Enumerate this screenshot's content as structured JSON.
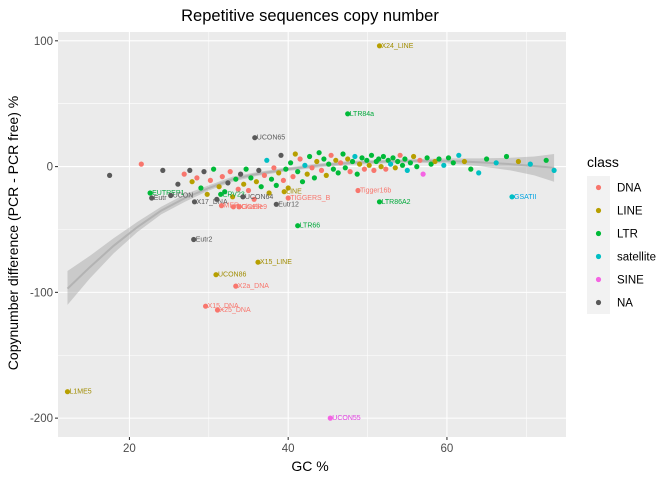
{
  "chart_data": {
    "type": "scatter",
    "title": "Repetitive sequences copy number",
    "xlabel": "GC %",
    "ylabel": "Copynumber difference (PCR - PCR free) %",
    "xlim": [
      11,
      75
    ],
    "ylim": [
      -215,
      107
    ],
    "x_ticks": [
      "20",
      "40",
      "60"
    ],
    "x_tick_values": [
      20,
      40,
      60
    ],
    "y_ticks": [
      "100",
      "0",
      "-100",
      "-200"
    ],
    "y_tick_values": [
      100,
      0,
      -100,
      -200
    ],
    "grid": true,
    "legend": {
      "title": "class",
      "position": "right",
      "entries": [
        {
          "name": "DNA",
          "color": "#F8766D"
        },
        {
          "name": "LINE",
          "color": "#B79F00"
        },
        {
          "name": "LTR",
          "color": "#00BA38"
        },
        {
          "name": "satellite",
          "color": "#00BFC4"
        },
        {
          "name": "SINE",
          "color": "#F564E3"
        },
        {
          "name": "NA",
          "color": "#595959"
        }
      ]
    },
    "colors": {
      "DNA": "#F8766D",
      "LINE": "#B79F00",
      "LTR": "#00BA38",
      "satellite": "#00BFC4",
      "SINE": "#F564E3",
      "NA": "#595959"
    },
    "label_colors": {
      "DNA": "#F8766D",
      "LINE": "#A08C00",
      "LTR": "#00A83A",
      "satellite": "#00A3E0",
      "SINE": "#E040E0",
      "NA": "#595959"
    },
    "labeled_points": [
      {
        "label": "X24_LINE",
        "x": 51.5,
        "y": 96,
        "class": "LINE"
      },
      {
        "label": "LTR84a",
        "x": 47.5,
        "y": 42,
        "class": "LTR"
      },
      {
        "label": "UCON65",
        "x": 35.8,
        "y": 23,
        "class": "NA"
      },
      {
        "label": "EUTREP1",
        "x": 22.6,
        "y": -21,
        "class": "LTR"
      },
      {
        "label": "UCON",
        "x": 25.2,
        "y": -23,
        "class": "NA"
      },
      {
        "label": "Eutr",
        "x": 22.8,
        "y": -25,
        "class": "NA"
      },
      {
        "label": "ERV23",
        "x": 31.5,
        "y": -22,
        "class": "LTR"
      },
      {
        "label": "X17_DNA",
        "x": 28.2,
        "y": -28,
        "class": "NA"
      },
      {
        "label": "UCON64",
        "x": 34.3,
        "y": -24,
        "class": "NA"
      },
      {
        "label": "MER",
        "x": 31.6,
        "y": -31,
        "class": "DNA"
      },
      {
        "label": "TIGGER",
        "x": 33.1,
        "y": -32,
        "class": "DNA"
      },
      {
        "label": "Charlie9",
        "x": 33.8,
        "y": -32,
        "class": "DNA"
      },
      {
        "label": "LINE",
        "x": 39.5,
        "y": -20,
        "class": "LINE"
      },
      {
        "label": "TIGGERS_B",
        "x": 40.0,
        "y": -25,
        "class": "DNA"
      },
      {
        "label": "Eutr12",
        "x": 38.5,
        "y": -30,
        "class": "NA"
      },
      {
        "label": "Tigger16b",
        "x": 48.8,
        "y": -19,
        "class": "DNA"
      },
      {
        "label": "LTR86A2",
        "x": 51.5,
        "y": -28,
        "class": "LTR"
      },
      {
        "label": "LTR66",
        "x": 41.2,
        "y": -47,
        "class": "LTR"
      },
      {
        "label": "GSATII",
        "x": 68.2,
        "y": -24,
        "class": "satellite"
      },
      {
        "label": "Eutr2",
        "x": 28.1,
        "y": -58,
        "class": "NA"
      },
      {
        "label": "X15_LINE",
        "x": 36.2,
        "y": -76,
        "class": "LINE"
      },
      {
        "label": "UCON86",
        "x": 30.9,
        "y": -86,
        "class": "LINE"
      },
      {
        "label": "X2a_DNA",
        "x": 33.4,
        "y": -95,
        "class": "DNA"
      },
      {
        "label": "X15_DNA",
        "x": 29.6,
        "y": -111,
        "class": "DNA"
      },
      {
        "label": "X25_DNA",
        "x": 31.1,
        "y": -114,
        "class": "DNA"
      },
      {
        "label": "L1ME5",
        "x": 12.2,
        "y": -179,
        "class": "LINE"
      },
      {
        "label": "UCON55",
        "x": 45.3,
        "y": -200,
        "class": "SINE"
      }
    ],
    "unlabeled_points": [
      {
        "x": 17.5,
        "y": -7,
        "class": "NA"
      },
      {
        "x": 21.5,
        "y": 2,
        "class": "DNA"
      },
      {
        "x": 24.2,
        "y": -3,
        "class": "NA"
      },
      {
        "x": 26.1,
        "y": -14,
        "class": "NA"
      },
      {
        "x": 26.9,
        "y": -6,
        "class": "DNA"
      },
      {
        "x": 27.6,
        "y": -3,
        "class": "NA"
      },
      {
        "x": 27.9,
        "y": -12,
        "class": "LINE"
      },
      {
        "x": 28.5,
        "y": -9,
        "class": "DNA"
      },
      {
        "x": 29.0,
        "y": -17,
        "class": "LTR"
      },
      {
        "x": 29.4,
        "y": -4,
        "class": "NA"
      },
      {
        "x": 29.8,
        "y": -22,
        "class": "LINE"
      },
      {
        "x": 30.2,
        "y": -11,
        "class": "DNA"
      },
      {
        "x": 30.6,
        "y": -2,
        "class": "LTR"
      },
      {
        "x": 31.0,
        "y": -26,
        "class": "NA"
      },
      {
        "x": 31.3,
        "y": -16,
        "class": "LINE"
      },
      {
        "x": 31.7,
        "y": -8,
        "class": "DNA"
      },
      {
        "x": 32.0,
        "y": -20,
        "class": "LTR"
      },
      {
        "x": 32.4,
        "y": -13,
        "class": "NA"
      },
      {
        "x": 32.7,
        "y": -4,
        "class": "DNA"
      },
      {
        "x": 33.0,
        "y": -24,
        "class": "LINE"
      },
      {
        "x": 33.4,
        "y": -10,
        "class": "LTR"
      },
      {
        "x": 33.7,
        "y": -18,
        "class": "DNA"
      },
      {
        "x": 34.0,
        "y": -6,
        "class": "NA"
      },
      {
        "x": 34.4,
        "y": -14,
        "class": "LINE"
      },
      {
        "x": 34.7,
        "y": -2,
        "class": "LTR"
      },
      {
        "x": 35.0,
        "y": -19,
        "class": "DNA"
      },
      {
        "x": 35.3,
        "y": -9,
        "class": "LTR"
      },
      {
        "x": 35.7,
        "y": -26,
        "class": "DNA"
      },
      {
        "x": 36.0,
        "y": -12,
        "class": "LINE"
      },
      {
        "x": 36.3,
        "y": -3,
        "class": "NA"
      },
      {
        "x": 36.6,
        "y": -16,
        "class": "LTR"
      },
      {
        "x": 37.0,
        "y": -7,
        "class": "DNA"
      },
      {
        "x": 37.3,
        "y": 5,
        "class": "satellite"
      },
      {
        "x": 37.6,
        "y": -21,
        "class": "LINE"
      },
      {
        "x": 37.9,
        "y": -10,
        "class": "LTR"
      },
      {
        "x": 38.2,
        "y": -1,
        "class": "DNA"
      },
      {
        "x": 38.5,
        "y": -15,
        "class": "LTR"
      },
      {
        "x": 38.8,
        "y": -5,
        "class": "LINE"
      },
      {
        "x": 39.1,
        "y": 9,
        "class": "NA"
      },
      {
        "x": 39.4,
        "y": -11,
        "class": "DNA"
      },
      {
        "x": 39.7,
        "y": -2,
        "class": "LTR"
      },
      {
        "x": 40.0,
        "y": -17,
        "class": "LINE"
      },
      {
        "x": 40.3,
        "y": 3,
        "class": "LTR"
      },
      {
        "x": 40.6,
        "y": -8,
        "class": "DNA"
      },
      {
        "x": 40.9,
        "y": 10,
        "class": "LINE"
      },
      {
        "x": 41.2,
        "y": -4,
        "class": "LTR"
      },
      {
        "x": 41.5,
        "y": 6,
        "class": "DNA"
      },
      {
        "x": 41.8,
        "y": -12,
        "class": "LTR"
      },
      {
        "x": 42.1,
        "y": 1,
        "class": "satellite"
      },
      {
        "x": 42.4,
        "y": -6,
        "class": "LINE"
      },
      {
        "x": 42.7,
        "y": 8,
        "class": "LTR"
      },
      {
        "x": 43.0,
        "y": -1,
        "class": "DNA"
      },
      {
        "x": 43.3,
        "y": -9,
        "class": "LTR"
      },
      {
        "x": 43.6,
        "y": 4,
        "class": "LINE"
      },
      {
        "x": 43.9,
        "y": 11,
        "class": "LTR"
      },
      {
        "x": 44.2,
        "y": -3,
        "class": "DNA"
      },
      {
        "x": 44.5,
        "y": 6,
        "class": "LTR"
      },
      {
        "x": 44.8,
        "y": -7,
        "class": "LINE"
      },
      {
        "x": 45.1,
        "y": 2,
        "class": "LTR"
      },
      {
        "x": 45.4,
        "y": 9,
        "class": "DNA"
      },
      {
        "x": 45.7,
        "y": -2,
        "class": "LTR"
      },
      {
        "x": 46.0,
        "y": 5,
        "class": "LINE"
      },
      {
        "x": 46.3,
        "y": -5,
        "class": "LTR"
      },
      {
        "x": 46.6,
        "y": 3,
        "class": "DNA"
      },
      {
        "x": 46.9,
        "y": 10,
        "class": "LTR"
      },
      {
        "x": 47.2,
        "y": -1,
        "class": "LTR"
      },
      {
        "x": 47.5,
        "y": 6,
        "class": "LINE"
      },
      {
        "x": 47.8,
        "y": -4,
        "class": "DNA"
      },
      {
        "x": 48.1,
        "y": 4,
        "class": "LTR"
      },
      {
        "x": 48.4,
        "y": 8,
        "class": "satellite"
      },
      {
        "x": 48.7,
        "y": -6,
        "class": "LTR"
      },
      {
        "x": 49.0,
        "y": 2,
        "class": "LINE"
      },
      {
        "x": 49.3,
        "y": 7,
        "class": "LTR"
      },
      {
        "x": 49.6,
        "y": -2,
        "class": "DNA"
      },
      {
        "x": 49.9,
        "y": 5,
        "class": "LTR"
      },
      {
        "x": 50.2,
        "y": 1,
        "class": "LINE"
      },
      {
        "x": 50.5,
        "y": 9,
        "class": "LTR"
      },
      {
        "x": 50.8,
        "y": -3,
        "class": "DNA"
      },
      {
        "x": 51.1,
        "y": 4,
        "class": "LTR"
      },
      {
        "x": 51.4,
        "y": 6,
        "class": "LTR"
      },
      {
        "x": 51.7,
        "y": 0,
        "class": "LINE"
      },
      {
        "x": 52.0,
        "y": 8,
        "class": "LTR"
      },
      {
        "x": 52.3,
        "y": -2,
        "class": "DNA"
      },
      {
        "x": 52.6,
        "y": 5,
        "class": "LTR"
      },
      {
        "x": 52.9,
        "y": 2,
        "class": "satellite"
      },
      {
        "x": 53.2,
        "y": 7,
        "class": "LTR"
      },
      {
        "x": 53.5,
        "y": -1,
        "class": "LINE"
      },
      {
        "x": 53.8,
        "y": 4,
        "class": "LTR"
      },
      {
        "x": 54.1,
        "y": 9,
        "class": "DNA"
      },
      {
        "x": 54.4,
        "y": 1,
        "class": "LTR"
      },
      {
        "x": 54.7,
        "y": 6,
        "class": "LTR"
      },
      {
        "x": 55.0,
        "y": -3,
        "class": "satellite"
      },
      {
        "x": 55.4,
        "y": 3,
        "class": "LTR"
      },
      {
        "x": 55.8,
        "y": 8,
        "class": "LINE"
      },
      {
        "x": 56.2,
        "y": 0,
        "class": "LTR"
      },
      {
        "x": 56.6,
        "y": 5,
        "class": "DNA"
      },
      {
        "x": 57.0,
        "y": -6,
        "class": "SINE"
      },
      {
        "x": 57.5,
        "y": 7,
        "class": "LTR"
      },
      {
        "x": 58.0,
        "y": 2,
        "class": "LTR"
      },
      {
        "x": 58.5,
        "y": 4,
        "class": "LINE"
      },
      {
        "x": 59.0,
        "y": 6,
        "class": "LTR"
      },
      {
        "x": 59.6,
        "y": 1,
        "class": "satellite"
      },
      {
        "x": 60.2,
        "y": 7,
        "class": "LTR"
      },
      {
        "x": 60.8,
        "y": 3,
        "class": "LTR"
      },
      {
        "x": 61.5,
        "y": 9,
        "class": "satellite"
      },
      {
        "x": 62.2,
        "y": 4,
        "class": "LINE"
      },
      {
        "x": 63.0,
        "y": -2,
        "class": "LTR"
      },
      {
        "x": 64.0,
        "y": -5,
        "class": "satellite"
      },
      {
        "x": 65.0,
        "y": 6,
        "class": "LTR"
      },
      {
        "x": 66.2,
        "y": 3,
        "class": "satellite"
      },
      {
        "x": 67.5,
        "y": 8,
        "class": "LTR"
      },
      {
        "x": 69.0,
        "y": 4,
        "class": "LINE"
      },
      {
        "x": 70.5,
        "y": 2,
        "class": "satellite"
      },
      {
        "x": 72.5,
        "y": 5,
        "class": "LTR"
      },
      {
        "x": 73.5,
        "y": -3,
        "class": "satellite"
      }
    ],
    "smooth_curve": [
      {
        "x": 12.2,
        "y": -97,
        "lo": -110,
        "hi": -83
      },
      {
        "x": 15,
        "y": -80,
        "lo": -89,
        "hi": -71
      },
      {
        "x": 18,
        "y": -63,
        "lo": -69,
        "hi": -57
      },
      {
        "x": 21,
        "y": -48,
        "lo": -52,
        "hi": -44
      },
      {
        "x": 24,
        "y": -35,
        "lo": -38,
        "hi": -32
      },
      {
        "x": 27,
        "y": -25,
        "lo": -28,
        "hi": -22
      },
      {
        "x": 30,
        "y": -17,
        "lo": -19,
        "hi": -15
      },
      {
        "x": 33,
        "y": -10,
        "lo": -12,
        "hi": -8
      },
      {
        "x": 36,
        "y": -6,
        "lo": -7.5,
        "hi": -4.5
      },
      {
        "x": 40,
        "y": -2,
        "lo": -3.5,
        "hi": -0.5
      },
      {
        "x": 44,
        "y": 1,
        "lo": -0.5,
        "hi": 2.5
      },
      {
        "x": 48,
        "y": 3,
        "lo": 1.5,
        "hi": 4.5
      },
      {
        "x": 52,
        "y": 4,
        "lo": 2.5,
        "hi": 5.5
      },
      {
        "x": 56,
        "y": 4.5,
        "lo": 3,
        "hi": 6
      },
      {
        "x": 60,
        "y": 4.5,
        "lo": 2.5,
        "hi": 6.5
      },
      {
        "x": 64,
        "y": 3.5,
        "lo": 0.5,
        "hi": 6.5
      },
      {
        "x": 68,
        "y": 2,
        "lo": -3,
        "hi": 7
      },
      {
        "x": 71,
        "y": 0.5,
        "lo": -7,
        "hi": 8
      },
      {
        "x": 73.5,
        "y": -1,
        "lo": -12,
        "hi": 10
      }
    ]
  }
}
